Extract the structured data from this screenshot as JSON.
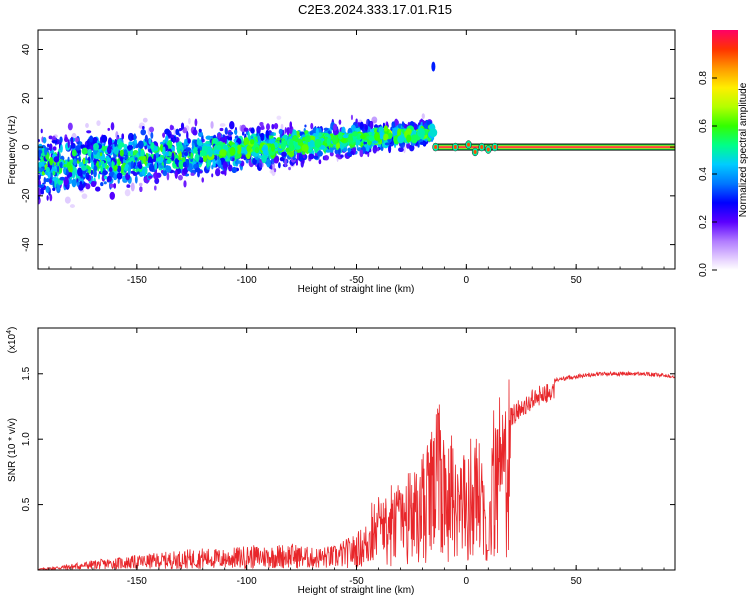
{
  "title": "C2E3.2024.333.17.01.R15",
  "chart_data": [
    {
      "type": "heatmap",
      "xlabel": "Height of straight line (km)",
      "ylabel": "Frequency (Hz)",
      "xlim": [
        -195,
        95
      ],
      "ylim": [
        -50,
        48
      ],
      "xticks": [
        -150,
        -100,
        -50,
        0,
        50
      ],
      "yticks": [
        -40,
        -20,
        0,
        20,
        40
      ],
      "colorbar": {
        "label": "Normalized spectral amplitude",
        "range": [
          0,
          1
        ],
        "ticks": [
          0.0,
          0.2,
          0.4,
          0.6,
          0.8
        ],
        "tick_labels": [
          "0.0",
          "0.2",
          "0.4",
          "0.6",
          "0.8"
        ]
      },
      "description_points": {
        "ridge_segments": [
          {
            "x0": -195,
            "x1": -15,
            "y0": -10,
            "y1": 8
          },
          {
            "x0": -15,
            "x1": 95,
            "y0": 0,
            "y1": 0
          }
        ]
      },
      "features": [
        {
          "x": -15,
          "y": 33,
          "amplitude": 0.15
        },
        {
          "x": 0,
          "y": 0,
          "amplitude": 0.9
        },
        {
          "x": 50,
          "y": 0,
          "amplitude": 0.95
        }
      ]
    },
    {
      "type": "line",
      "xlabel": "Height of straight line (km)",
      "ylabel": "SNR (10 * v/v)",
      "y_multiplier": "(x10",
      "y_multiplier_exp": "4",
      "y_multiplier_close": ")",
      "xlim": [
        -195,
        95
      ],
      "ylim": [
        0,
        1.85
      ],
      "xticks": [
        -150,
        -100,
        -50,
        0,
        50
      ],
      "yticks": [
        0.5,
        1.0,
        1.5
      ],
      "ytick_labels": [
        "0.5",
        "1.0",
        "1.5"
      ],
      "series": [
        {
          "color": "#e8262a",
          "x": [
            -195,
            -180,
            -170,
            -160,
            -150,
            -140,
            -130,
            -120,
            -110,
            -100,
            -90,
            -80,
            -70,
            -60,
            -55,
            -50,
            -45,
            -40,
            -35,
            -30,
            -25,
            -20,
            -15,
            -12,
            -10,
            -8,
            -5,
            0,
            5,
            8,
            10,
            12,
            15,
            20,
            25,
            30,
            40,
            50,
            60,
            70,
            80,
            95
          ],
          "values": [
            0.01,
            0.05,
            0.08,
            0.1,
            0.12,
            0.14,
            0.16,
            0.18,
            0.17,
            0.2,
            0.2,
            0.22,
            0.18,
            0.2,
            0.25,
            0.3,
            0.4,
            0.5,
            0.55,
            0.6,
            0.7,
            0.85,
            1.0,
            1.3,
            1.1,
            0.9,
            0.95,
            0.8,
            1.0,
            0.7,
            0.2,
            1.1,
            1.15,
            1.25,
            1.3,
            1.38,
            1.45,
            1.48,
            1.5,
            1.5,
            1.5,
            1.48
          ]
        }
      ]
    }
  ]
}
